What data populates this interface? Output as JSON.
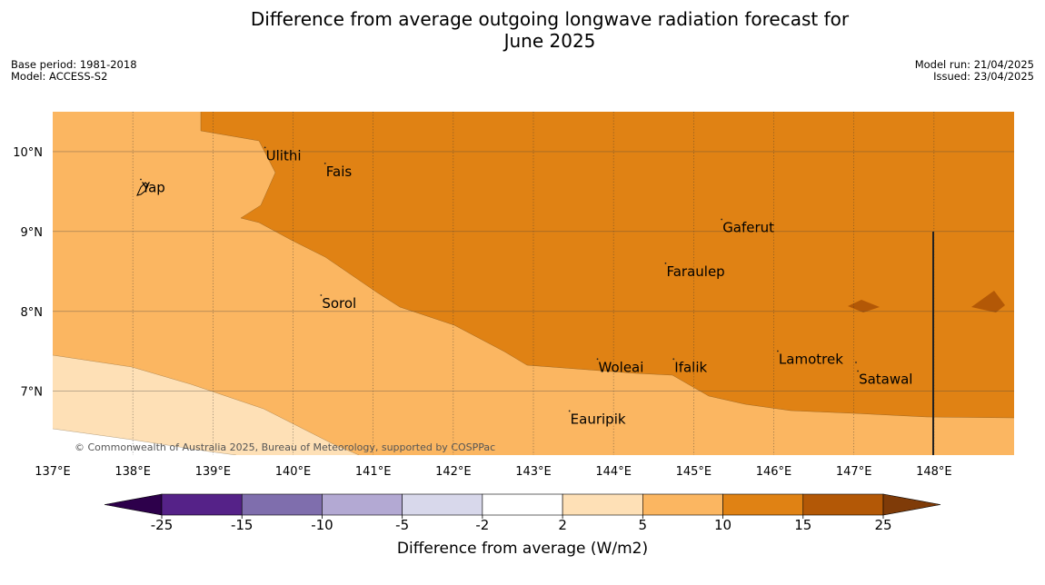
{
  "title_line1": "Difference from average outgoing longwave radiation forecast for",
  "title_line2": "June 2025",
  "meta_left": [
    "Base period: 1981-2018",
    "Model: ACCESS-S2"
  ],
  "meta_right": [
    "Model run: 21/04/2025",
    "Issued: 23/04/2025"
  ],
  "credit": "© Commonwealth of Australia 2025, Bureau of Meteorology, supported by COSPPac",
  "map": {
    "lon_range": [
      137,
      149
    ],
    "lat_range": [
      6.2,
      10.5
    ],
    "lon_ticks": [
      "137°E",
      "138°E",
      "139°E",
      "140°E",
      "141°E",
      "142°E",
      "143°E",
      "144°E",
      "145°E",
      "146°E",
      "147°E",
      "148°E"
    ],
    "lat_ticks": [
      "10°N",
      "9°N",
      "8°N",
      "7°N"
    ],
    "places": [
      {
        "name": "Ulithi",
        "lon": 139.65,
        "lat": 9.95
      },
      {
        "name": "Yap",
        "lon": 138.1,
        "lat": 9.55
      },
      {
        "name": "Fais",
        "lon": 140.4,
        "lat": 9.75
      },
      {
        "name": "Gaferut",
        "lon": 145.35,
        "lat": 9.05
      },
      {
        "name": "Faraulep",
        "lon": 144.65,
        "lat": 8.5
      },
      {
        "name": "Sorol",
        "lon": 140.35,
        "lat": 8.1
      },
      {
        "name": "Lamotrek",
        "lon": 146.05,
        "lat": 7.4
      },
      {
        "name": "Woleai",
        "lon": 143.8,
        "lat": 7.3
      },
      {
        "name": "Ifalik",
        "lon": 144.75,
        "lat": 7.3
      },
      {
        "name": "Satawal",
        "lon": 147.05,
        "lat": 7.15
      },
      {
        "name": "Eauripik",
        "lon": 143.45,
        "lat": 6.65
      }
    ]
  },
  "colorbar": {
    "label": "Difference from average (W/m2)",
    "ticks": [
      "-25",
      "-15",
      "-10",
      "-5",
      "-2",
      "2",
      "5",
      "10",
      "15",
      "25"
    ],
    "colors": [
      "#552288",
      "#7f6ead",
      "#b3a9d3",
      "#d8d8eb",
      "#ffffff",
      "#fee0b6",
      "#fbb661",
      "#e08214",
      "#b35806"
    ],
    "low_extend_color": "#2d004b",
    "high_extend_color": "#7f3b08"
  },
  "field_colors": {
    "band_2_5": "#fee0b6",
    "band_5_10": "#fbb661",
    "band_10_15": "#e08214",
    "band_15_25": "#b35806"
  }
}
